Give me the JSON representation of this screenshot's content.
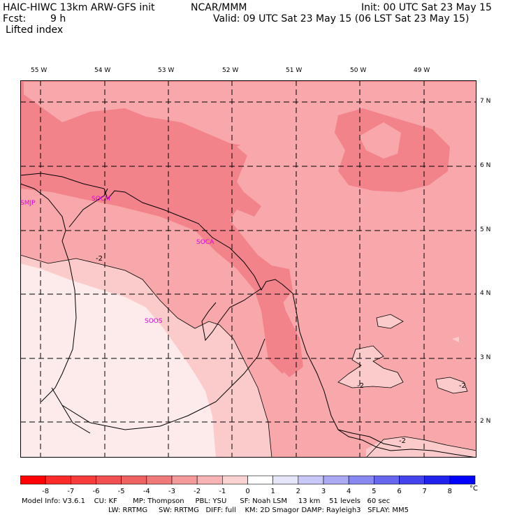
{
  "header": {
    "title": "HAIC-HIWC 13km ARW-GFS init",
    "org": "NCAR/MMM",
    "init": "Init: 00 UTC Sat 23 May 15",
    "fcst_label": "Fcst:",
    "fcst_value": "9 h",
    "valid": "Valid: 09 UTC Sat 23 May 15 (06 LST Sat 23 May 15)",
    "field": "Lifted index"
  },
  "map": {
    "lon_labels": [
      "55 W",
      "54 W",
      "53 W",
      "52 W",
      "51 W",
      "50 W",
      "49 W"
    ],
    "lat_labels": [
      "7 N",
      "6 N",
      "5 N",
      "4 N",
      "3 N",
      "2 N"
    ],
    "stations": [
      "SMJP",
      "SOCM",
      "SOCA",
      "SOOS"
    ],
    "contour_labels": [
      "-2",
      "-2",
      "-2",
      "-2"
    ],
    "colors": {
      "level_m6": "#f2838a",
      "level_m3": "#f8a8aa",
      "level_m2": "#fbcbcb",
      "level_m1": "#fdeaea",
      "border": "#000000",
      "station": "#e000e0"
    }
  },
  "colorbar": {
    "ticks": [
      "-8",
      "-7",
      "-6",
      "-5",
      "-4",
      "-3",
      "-2",
      "-1",
      "0",
      "1",
      "2",
      "3",
      "4",
      "5",
      "6",
      "7",
      "8"
    ],
    "unit": "°C",
    "colors": [
      "#ff0000",
      "#ff2a2a",
      "#f83c3c",
      "#f25050",
      "#ee6262",
      "#f07a7a",
      "#f59a9a",
      "#f8b4b4",
      "#fbd2d2",
      "#ffffff",
      "#e6e6fb",
      "#c8c8f8",
      "#aaaaf4",
      "#8888f0",
      "#6666ee",
      "#4444ee",
      "#2222ee",
      "#0000ff"
    ]
  },
  "footer": {
    "line1": "Model Info: V3.6.1    CU: KF       MP: Thompson     PBL: YSU      SF: Noah LSM     13 km    51 levels   60 sec",
    "line2": "LW: RRTMG     SW: RRTMG   DIFF: full    KM: 2D Smagor DAMP: Rayleigh3   SFLAY: MM5"
  }
}
